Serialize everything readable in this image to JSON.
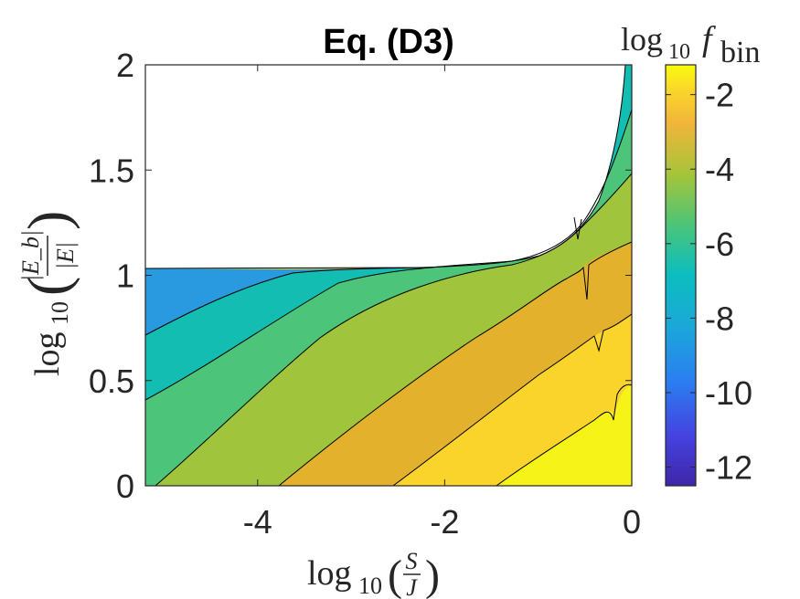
{
  "chart_data": {
    "type": "contour",
    "title": "Eq. (D3)",
    "xlabel": {
      "prefix": "log",
      "sub": "10",
      "num": "S",
      "den": "J"
    },
    "ylabel": {
      "prefix": "log",
      "sub": "10",
      "num": "|E_b|",
      "den": "|E|"
    },
    "colorbar_label": {
      "prefix": "log",
      "sub": "10",
      "var": "f",
      "varsub": "bin"
    },
    "xlim": [
      -5.2,
      0
    ],
    "ylim": [
      0,
      2
    ],
    "xticks": [
      -4,
      -2,
      0
    ],
    "xtick_labels": [
      "-4",
      "-2",
      "0"
    ],
    "yticks": [
      0,
      0.5,
      1,
      1.5,
      2
    ],
    "ytick_labels": [
      "0",
      "0.5",
      "1",
      "1.5",
      "2"
    ],
    "colorbar_lim": [
      -12.5,
      -1.2
    ],
    "colorbar_ticks": [
      -12,
      -10,
      -8,
      -6,
      -4,
      -2
    ],
    "colorbar_tick_labels": [
      "-12",
      "-10",
      "-8",
      "-6",
      "-4",
      "-2"
    ],
    "levels": [
      {
        "name": "level-below-minus-8",
        "color": "#2a9ae0"
      },
      {
        "name": "level-minus-8-to-minus-7",
        "color": "#1cb2cc"
      },
      {
        "name": "level-minus-7-to-minus-6",
        "color": "#14bdb1"
      },
      {
        "name": "level-minus-6-to-minus-5",
        "color": "#4cc479"
      },
      {
        "name": "level-minus-5-to-minus-4",
        "color": "#a0c43b"
      },
      {
        "name": "level-minus-4-to-minus-3",
        "color": "#e4b12d"
      },
      {
        "name": "level-minus-3-to-minus-2",
        "color": "#fad42b"
      },
      {
        "name": "level-above-minus-2",
        "color": "#f5f318"
      }
    ],
    "boundary_note": "white region above |E_b|/|E| upper limit (~1.03 at low S/J rising steeply near log10(S/J)=-0.1)"
  }
}
